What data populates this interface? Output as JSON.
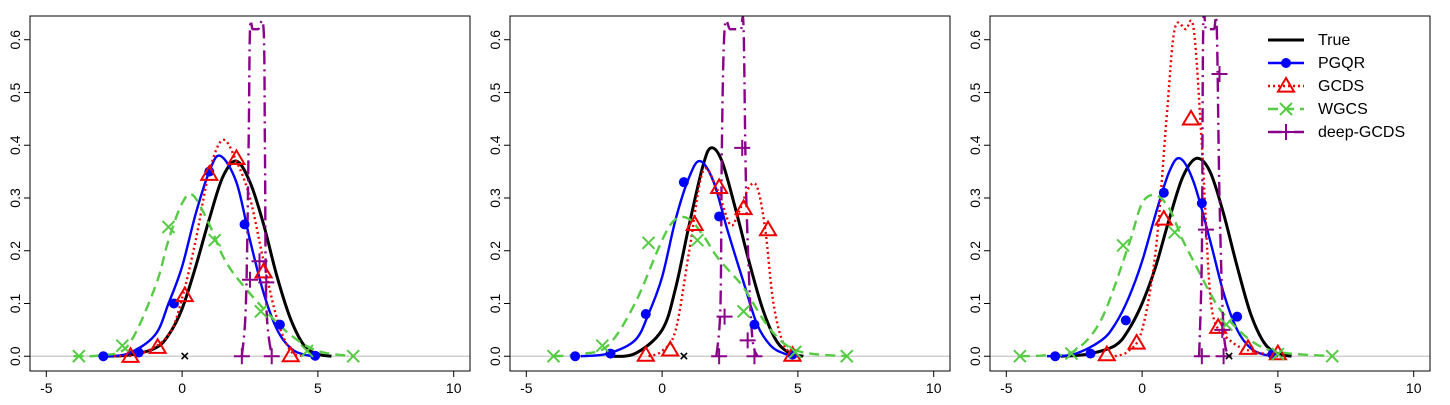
{
  "chart_data": [
    {
      "type": "line",
      "panel": "left",
      "xlim": [
        -5,
        10
      ],
      "ylim": [
        0,
        0.62
      ],
      "xticks": [
        -5,
        0,
        5,
        10
      ],
      "yticks": [
        0.0,
        0.1,
        0.2,
        0.3,
        0.4,
        0.5,
        0.6
      ],
      "xtick_labels": [
        "-5",
        "0",
        "5",
        "10"
      ],
      "ytick_labels": [
        "0.0",
        "0.1",
        "0.2",
        "0.3",
        "0.4",
        "0.5",
        "0.6"
      ],
      "reference_point": {
        "x": 0.1,
        "y": 0.0,
        "label": "×"
      },
      "series": [
        {
          "name": "True",
          "color": "#000000",
          "style": "solid",
          "marker": "none",
          "x": [
            -3,
            -2,
            -1,
            -0.5,
            0,
            0.5,
            1,
            1.5,
            2,
            2.5,
            3,
            3.5,
            4,
            4.5,
            5,
            5.5
          ],
          "y": [
            0,
            0.002,
            0.015,
            0.04,
            0.09,
            0.17,
            0.26,
            0.34,
            0.37,
            0.33,
            0.25,
            0.15,
            0.07,
            0.02,
            0.004,
            0
          ]
        },
        {
          "name": "PGQR",
          "color": "#0000ff",
          "style": "solid",
          "marker": "dot",
          "x": [
            -3,
            -2,
            -1,
            -0.5,
            0,
            0.5,
            1,
            1.4,
            2,
            2.5,
            3,
            3.5,
            4,
            4.5,
            5
          ],
          "y": [
            0,
            0.005,
            0.04,
            0.1,
            0.17,
            0.27,
            0.35,
            0.38,
            0.33,
            0.22,
            0.12,
            0.05,
            0.015,
            0.003,
            0
          ],
          "marker_x": [
            -2.9,
            -1.6,
            -0.3,
            1.0,
            2.3,
            3.6,
            4.9
          ],
          "marker_y": [
            0.0,
            0.007,
            0.1,
            0.35,
            0.25,
            0.06,
            0.001
          ]
        },
        {
          "name": "GCDS",
          "color": "#ee0000",
          "style": "dotted",
          "marker": "triangle",
          "x": [
            -2.5,
            -1.5,
            -0.5,
            0,
            0.5,
            1,
            1.5,
            2,
            2.5,
            3,
            3.5,
            4,
            4.5
          ],
          "y": [
            0,
            0.005,
            0.04,
            0.11,
            0.22,
            0.35,
            0.41,
            0.37,
            0.3,
            0.18,
            0.07,
            0.01,
            0
          ],
          "marker_x": [
            -1.9,
            -0.9,
            0.1,
            1.0,
            2.0,
            3.0,
            4.0
          ],
          "marker_y": [
            0.0,
            0.017,
            0.115,
            0.345,
            0.375,
            0.16,
            0.001
          ]
        },
        {
          "name": "WGCS",
          "color": "#55cc44",
          "style": "dashed",
          "marker": "x",
          "x": [
            -4,
            -3,
            -2,
            -1,
            -0.5,
            0,
            0.4,
            1,
            1.5,
            2,
            3,
            4,
            5,
            6.3
          ],
          "y": [
            0,
            0.002,
            0.02,
            0.13,
            0.22,
            0.29,
            0.305,
            0.25,
            0.19,
            0.15,
            0.09,
            0.04,
            0.01,
            0
          ],
          "marker_x": [
            -3.8,
            -2.2,
            -0.5,
            1.2,
            2.9,
            4.6,
            6.3
          ],
          "marker_y": [
            0.0,
            0.02,
            0.245,
            0.22,
            0.085,
            0.01,
            0.0
          ]
        },
        {
          "name": "deep-GCDS",
          "color": "#8b008b",
          "style": "dotdash",
          "marker": "plus",
          "x": [
            2.2,
            2.35,
            2.45,
            2.5,
            2.6,
            2.8,
            3.0,
            3.05,
            3.1,
            3.3
          ],
          "y": [
            0,
            0.1,
            0.4,
            0.62,
            0.62,
            0.62,
            0.62,
            0.4,
            0.1,
            0
          ],
          "marker_x": [
            2.2,
            2.5,
            2.85,
            3.1,
            3.3
          ],
          "marker_y": [
            0.0,
            0.145,
            0.18,
            0.14,
            0.0
          ]
        }
      ]
    },
    {
      "type": "line",
      "panel": "middle",
      "xlim": [
        -5,
        10
      ],
      "ylim": [
        0,
        0.62
      ],
      "xticks": [
        -5,
        0,
        5,
        10
      ],
      "yticks": [
        0.0,
        0.1,
        0.2,
        0.3,
        0.4,
        0.5,
        0.6
      ],
      "xtick_labels": [
        "-5",
        "0",
        "5",
        "10"
      ],
      "ytick_labels": [
        "0.0",
        "0.1",
        "0.2",
        "0.3",
        "0.4",
        "0.5",
        "0.6"
      ],
      "reference_point": {
        "x": 0.8,
        "y": 0.0,
        "label": "×"
      },
      "series": [
        {
          "name": "True",
          "color": "#000000",
          "style": "solid",
          "marker": "none",
          "x": [
            -2,
            -1,
            0,
            0.5,
            1,
            1.5,
            1.8,
            2.2,
            2.7,
            3.2,
            3.7,
            4.2,
            4.7,
            5.2
          ],
          "y": [
            0,
            0.005,
            0.05,
            0.13,
            0.25,
            0.36,
            0.395,
            0.37,
            0.28,
            0.18,
            0.09,
            0.03,
            0.006,
            0
          ],
          "marker_x": [],
          "marker_y": []
        },
        {
          "name": "PGQR",
          "color": "#0000ff",
          "style": "solid",
          "marker": "dot",
          "x": [
            -3,
            -2,
            -1,
            -0.5,
            0,
            0.5,
            1,
            1.4,
            1.9,
            2.4,
            3,
            3.5,
            4,
            4.5,
            5
          ],
          "y": [
            0,
            0.005,
            0.03,
            0.08,
            0.15,
            0.26,
            0.34,
            0.37,
            0.33,
            0.24,
            0.14,
            0.06,
            0.02,
            0.005,
            0
          ],
          "marker_x": [
            -3.2,
            -1.9,
            -0.6,
            0.8,
            2.1,
            3.4,
            4.8
          ],
          "marker_y": [
            0.0,
            0.005,
            0.08,
            0.33,
            0.265,
            0.06,
            0.003
          ]
        },
        {
          "name": "GCDS",
          "color": "#ee0000",
          "style": "dotted",
          "marker": "triangle",
          "x": [
            -0.5,
            0,
            0.5,
            1,
            1.5,
            2,
            2.5,
            2.8,
            3.2,
            3.5,
            3.8,
            4.1,
            4.5,
            5
          ],
          "y": [
            0,
            0.01,
            0.05,
            0.2,
            0.35,
            0.32,
            0.25,
            0.27,
            0.32,
            0.32,
            0.24,
            0.1,
            0.02,
            0
          ],
          "marker_x": [
            -0.6,
            0.3,
            1.2,
            2.1,
            3.0,
            3.9,
            4.8
          ],
          "marker_y": [
            0.002,
            0.012,
            0.25,
            0.32,
            0.28,
            0.24,
            0.002
          ]
        },
        {
          "name": "WGCS",
          "color": "#55cc44",
          "style": "dashed",
          "marker": "x",
          "x": [
            -4,
            -3,
            -2,
            -1,
            0,
            0.5,
            1,
            1.5,
            2,
            2.5,
            3,
            4,
            5,
            6.8
          ],
          "y": [
            0,
            0.004,
            0.02,
            0.1,
            0.22,
            0.26,
            0.26,
            0.23,
            0.19,
            0.16,
            0.13,
            0.05,
            0.01,
            0
          ],
          "marker_x": [
            -4.0,
            -2.2,
            -0.5,
            1.3,
            3.0,
            4.9,
            6.8
          ],
          "marker_y": [
            0.0,
            0.02,
            0.215,
            0.22,
            0.085,
            0.008,
            0.0
          ]
        },
        {
          "name": "deep-GCDS",
          "color": "#8b008b",
          "style": "dotdash",
          "marker": "plus",
          "x": [
            2.0,
            2.15,
            2.2,
            2.3,
            2.5,
            2.7,
            2.9,
            3.0,
            3.1,
            3.3,
            3.5
          ],
          "y": [
            0,
            0.1,
            0.4,
            0.62,
            0.62,
            0.62,
            0.62,
            0.62,
            0.3,
            0.05,
            0
          ],
          "marker_x": [
            2.1,
            2.3,
            2.95,
            3.15,
            3.4
          ],
          "marker_y": [
            0.0,
            0.075,
            0.395,
            0.03,
            0.0
          ]
        }
      ]
    },
    {
      "type": "line",
      "panel": "right",
      "xlim": [
        -5,
        10
      ],
      "ylim": [
        0,
        0.62
      ],
      "xticks": [
        -5,
        0,
        5,
        10
      ],
      "yticks": [
        0.0,
        0.1,
        0.2,
        0.3,
        0.4,
        0.5,
        0.6
      ],
      "xtick_labels": [
        "-5",
        "0",
        "5",
        "10"
      ],
      "ytick_labels": [
        "0.0",
        "0.1",
        "0.2",
        "0.3",
        "0.4",
        "0.5",
        "0.6"
      ],
      "reference_point": {
        "x": 3.2,
        "y": 0.0,
        "label": "×"
      },
      "legend": {
        "position": "top-right",
        "entries": [
          "True",
          "PGQR",
          "GCDS",
          "WGCS",
          "deep-GCDS"
        ]
      },
      "series": [
        {
          "name": "True",
          "color": "#000000",
          "style": "solid",
          "marker": "none",
          "x": [
            -3,
            -2,
            -1,
            -0.5,
            0,
            0.5,
            1,
            1.5,
            2,
            2.5,
            3,
            3.5,
            4,
            4.5,
            5,
            5.5
          ],
          "y": [
            0,
            0.004,
            0.02,
            0.05,
            0.1,
            0.17,
            0.26,
            0.34,
            0.375,
            0.35,
            0.27,
            0.17,
            0.08,
            0.025,
            0.005,
            0
          ],
          "marker_x": [],
          "marker_y": []
        },
        {
          "name": "PGQR",
          "color": "#0000ff",
          "style": "solid",
          "marker": "dot",
          "x": [
            -3.5,
            -2.5,
            -1.5,
            -1,
            -0.5,
            0,
            0.5,
            1,
            1.4,
            1.9,
            2.5,
            3,
            3.5,
            4,
            4.5,
            5
          ],
          "y": [
            0,
            0.004,
            0.03,
            0.06,
            0.11,
            0.18,
            0.27,
            0.35,
            0.375,
            0.33,
            0.22,
            0.12,
            0.05,
            0.015,
            0.003,
            0
          ],
          "marker_x": [
            -3.2,
            -1.9,
            -0.6,
            0.8,
            2.2,
            3.5,
            4.8
          ],
          "marker_y": [
            0.0,
            0.005,
            0.068,
            0.31,
            0.29,
            0.075,
            0.004
          ]
        },
        {
          "name": "GCDS",
          "color": "#ee0000",
          "style": "dotted",
          "marker": "triangle",
          "x": [
            -1,
            -0.5,
            0,
            0.5,
            0.9,
            1.2,
            1.6,
            1.9,
            2.2,
            2.5,
            2.8,
            3,
            3.5,
            4,
            5
          ],
          "y": [
            0,
            0.01,
            0.05,
            0.2,
            0.45,
            0.62,
            0.62,
            0.62,
            0.4,
            0.12,
            0.05,
            0.04,
            0.02,
            0.01,
            0
          ],
          "marker_x": [
            -1.3,
            -0.2,
            0.8,
            1.8,
            2.8,
            3.9,
            5.0
          ],
          "marker_y": [
            0.003,
            0.025,
            0.26,
            0.45,
            0.055,
            0.015,
            0.005
          ]
        },
        {
          "name": "WGCS",
          "color": "#55cc44",
          "style": "dashed",
          "marker": "x",
          "x": [
            -4.5,
            -3.5,
            -2.5,
            -1.5,
            -0.5,
            0,
            0.5,
            1,
            1.5,
            2,
            2.5,
            3,
            4,
            5,
            7
          ],
          "y": [
            0,
            0.002,
            0.01,
            0.07,
            0.21,
            0.29,
            0.305,
            0.28,
            0.22,
            0.17,
            0.12,
            0.08,
            0.03,
            0.008,
            0
          ],
          "marker_x": [
            -4.5,
            -2.6,
            -0.7,
            1.2,
            3.1,
            5.0,
            7.0
          ],
          "marker_y": [
            0.0,
            0.005,
            0.21,
            0.235,
            0.06,
            0.004,
            0.0
          ]
        },
        {
          "name": "deep-GCDS",
          "color": "#8b008b",
          "style": "dotdash",
          "marker": "plus",
          "x": [
            2.1,
            2.2,
            2.25,
            2.35,
            2.5,
            2.65,
            2.75,
            2.85,
            3.0,
            3.2
          ],
          "y": [
            0,
            0.2,
            0.62,
            0.62,
            0.62,
            0.62,
            0.62,
            0.3,
            0.05,
            0
          ],
          "marker_x": [
            2.2,
            2.35,
            2.85,
            2.95,
            3.0
          ],
          "marker_y": [
            0.0,
            0.24,
            0.535,
            0.05,
            0.0
          ]
        }
      ]
    }
  ]
}
